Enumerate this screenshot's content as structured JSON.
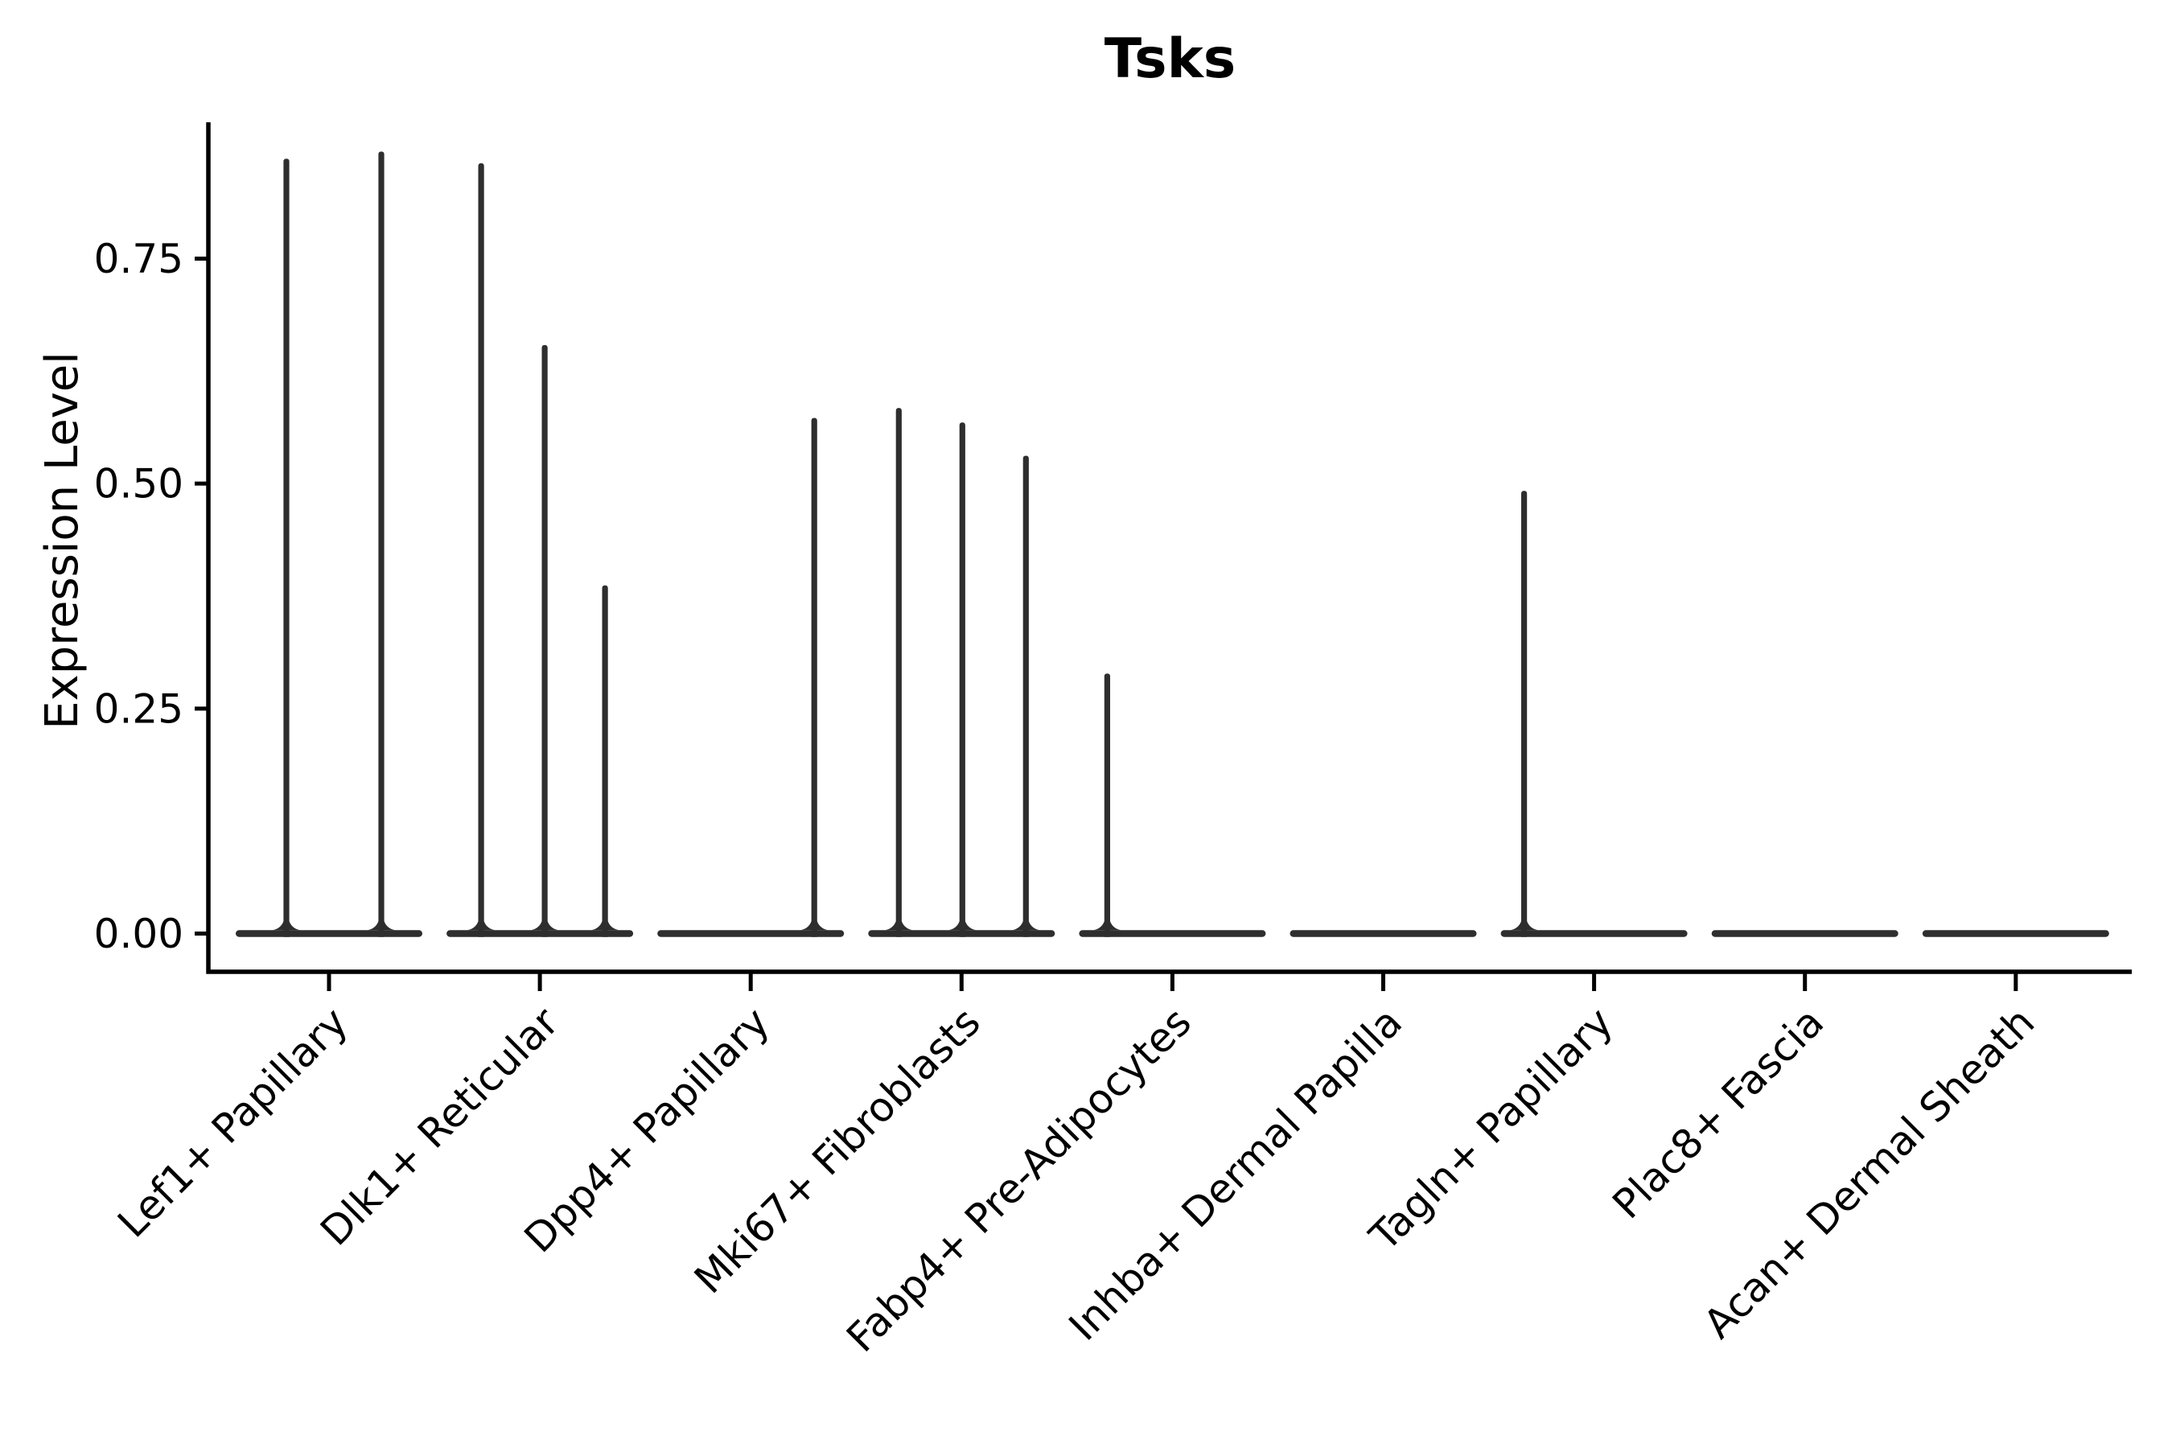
{
  "figure": {
    "background": "#ffffff"
  },
  "chart_data": {
    "type": "violin",
    "title": "Tsks",
    "xlabel": "",
    "ylabel": "Expression Level",
    "categories": [
      "Lef1+ Papillary",
      "Dlk1+ Reticular",
      "Dpp4+ Papillary",
      "Mki67+ Fibroblasts",
      "Fabp4+ Pre-Adipocytes",
      "Inhba+ Dermal Papilla",
      "Tagln+ Papillary",
      "Plac8+ Fascia",
      "Acan+ Dermal Sheath"
    ],
    "yticks": [
      {
        "value": 0.0,
        "label": "0.00"
      },
      {
        "value": 0.25,
        "label": "0.25"
      },
      {
        "value": 0.5,
        "label": "0.50"
      },
      {
        "value": 0.75,
        "label": "0.75"
      }
    ],
    "ylim": [
      -0.043,
      0.903
    ],
    "grid": false,
    "legend": null,
    "tick_label_rotation_deg": 45,
    "colors": {
      "violin": "#2e2e2e",
      "axis": "#000000",
      "text": "#000000",
      "background": "#ffffff"
    },
    "violins": [
      {
        "category": "Lef1+ Papillary",
        "spikes": [
          {
            "dx": -53,
            "value": 0.861
          },
          {
            "dx": 65,
            "value": 0.869
          }
        ]
      },
      {
        "category": "Dlk1+ Reticular",
        "spikes": [
          {
            "dx": -73,
            "value": 0.856
          },
          {
            "dx": 6,
            "value": 0.654
          },
          {
            "dx": 81,
            "value": 0.387
          }
        ]
      },
      {
        "category": "Dpp4+ Papillary",
        "spikes": [
          {
            "dx": 79,
            "value": 0.573
          }
        ]
      },
      {
        "category": "Mki67+ Fibroblasts",
        "spikes": [
          {
            "dx": -78,
            "value": 0.584
          },
          {
            "dx": 1,
            "value": 0.568
          },
          {
            "dx": 80,
            "value": 0.531
          }
        ]
      },
      {
        "category": "Fabp4+ Pre-Adipocytes",
        "spikes": [
          {
            "dx": -81,
            "value": 0.289
          }
        ]
      },
      {
        "category": "Inhba+ Dermal Papilla",
        "spikes": []
      },
      {
        "category": "Tagln+ Papillary",
        "spikes": [
          {
            "dx": -87,
            "value": 0.492
          }
        ]
      },
      {
        "category": "Plac8+ Fascia",
        "spikes": []
      },
      {
        "category": "Acan+ Dermal Sheath",
        "spikes": []
      }
    ]
  }
}
